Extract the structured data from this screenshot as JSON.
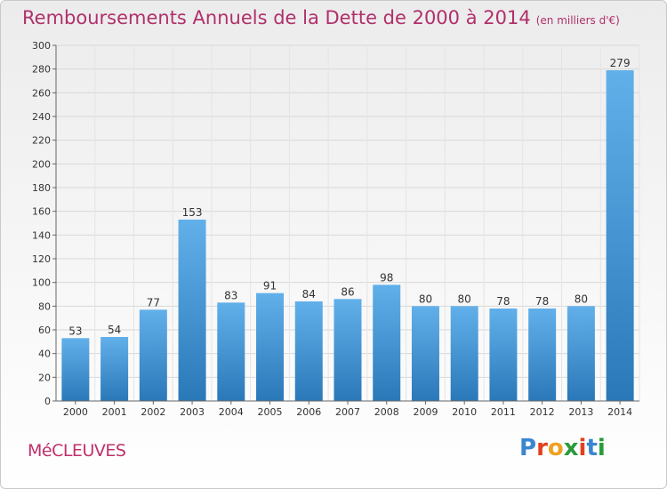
{
  "header": {
    "title": "Remboursements Annuels de la Dette de 2000 à 2014",
    "subtitle": "(en milliers d'€)"
  },
  "footer": {
    "commune": "MéCLEUVES",
    "logo": "Proxiti"
  },
  "colors": {
    "bar_light": "#62b0ea",
    "bar_dark": "#2a78b8",
    "title": "#b0306b",
    "logo": [
      "#3a86d0",
      "#e2401e",
      "#f0a020",
      "#2a9a3a",
      "#e2401e",
      "#3a86d0",
      "#2a9a3a"
    ]
  },
  "chart_data": {
    "type": "bar",
    "title": "Remboursements Annuels de la Dette de 2000 à 2014",
    "subtitle": "(en milliers d'€)",
    "categories": [
      "2000",
      "2001",
      "2002",
      "2003",
      "2004",
      "2005",
      "2006",
      "2007",
      "2008",
      "2009",
      "2010",
      "2011",
      "2012",
      "2013",
      "2014"
    ],
    "values": [
      53,
      54,
      77,
      153,
      83,
      91,
      84,
      86,
      98,
      80,
      80,
      78,
      78,
      80,
      279
    ],
    "ylim": [
      0,
      300
    ],
    "yticks": [
      0,
      20,
      40,
      60,
      80,
      100,
      120,
      140,
      160,
      180,
      200,
      220,
      240,
      260,
      280,
      300
    ],
    "grid": true,
    "data_labels": true
  }
}
